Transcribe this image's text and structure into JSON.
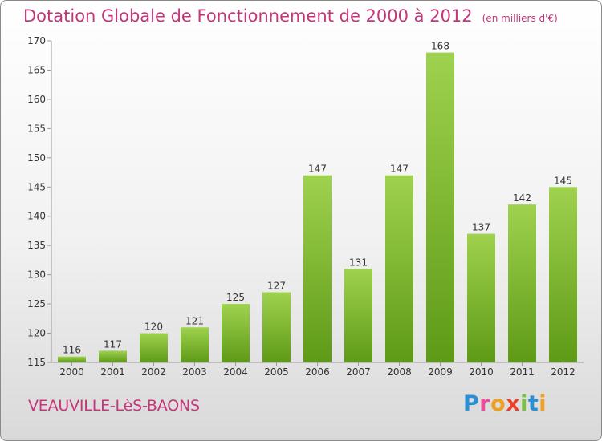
{
  "header": {
    "title": "Dotation Globale de Fonctionnement de 2000 à 2012",
    "unit": "(en milliers d'€)"
  },
  "footer": {
    "commune": "VEAUVILLE-LèS-BAONS",
    "logo_letters": [
      "P",
      "r",
      "o",
      "x",
      "i",
      "t",
      "i"
    ],
    "logo_colors": [
      "#2b8fd4",
      "#e84f9b",
      "#f0a020",
      "#e8402a",
      "#7ac043",
      "#2b8fd4",
      "#f0a020"
    ]
  },
  "colors": {
    "bar_light": "#9fd24e",
    "bar_dark": "#5e9a16",
    "title": "#c4357a",
    "axis": "#999999"
  },
  "chart_data": {
    "type": "bar",
    "title": "Dotation Globale de Fonctionnement de 2000 à 2012",
    "categories": [
      "2000",
      "2001",
      "2002",
      "2003",
      "2004",
      "2005",
      "2006",
      "2007",
      "2008",
      "2009",
      "2010",
      "2011",
      "2012"
    ],
    "values": [
      116,
      117,
      120,
      121,
      125,
      127,
      147,
      131,
      147,
      168,
      137,
      142,
      145
    ],
    "ylim": [
      115,
      170
    ],
    "yticks": [
      115,
      120,
      125,
      130,
      135,
      140,
      145,
      150,
      155,
      160,
      165,
      170
    ],
    "xlabel": "",
    "ylabel": "",
    "grid": false,
    "legend": "none"
  }
}
